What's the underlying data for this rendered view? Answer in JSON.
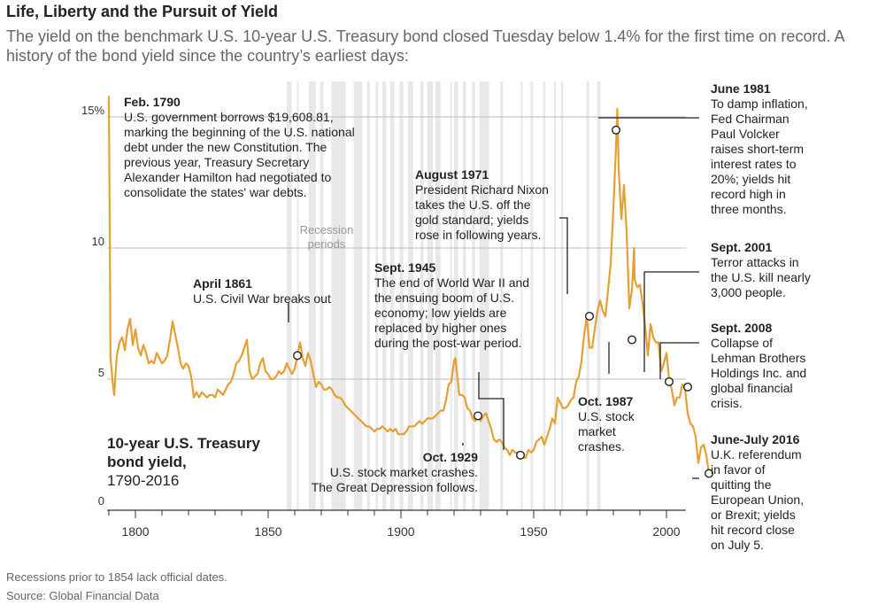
{
  "header": {
    "title": "Life, Liberty and the Pursuit of Yield",
    "subtitle": "The yield on the benchmark U.S. 10-year U.S. Treasury bond closed Tuesday below 1.4% for the first time on record. A history of the bond yield since the country’s earliest days:"
  },
  "footer": {
    "note": "Recessions prior to 1854 lack official dates.",
    "source": "Source: Global Financial Data"
  },
  "colors": {
    "line": "#E5A033",
    "recession": "#D9D9D9",
    "grid": "#BBBBBB",
    "text": "#222222",
    "muted": "#666666"
  },
  "chart_data": {
    "type": "line",
    "series_label": [
      "10-year U.S. Treasury",
      "bond yield,",
      "1790-2016"
    ],
    "xlim": [
      1790,
      2016
    ],
    "ylim": [
      0,
      15
    ],
    "x_ticks": [
      1800,
      1850,
      1900,
      1950,
      2000
    ],
    "y_ticks": [
      {
        "value": 0,
        "label": "0"
      },
      {
        "value": 5,
        "label": "5"
      },
      {
        "value": 10,
        "label": "10"
      },
      {
        "value": 15,
        "label": "15%"
      }
    ],
    "recession_label": [
      "Recession",
      "periods"
    ],
    "recession_periods": [
      [
        1857,
        1858.9
      ],
      [
        1860.8,
        1861.5
      ],
      [
        1865.3,
        1867.9
      ],
      [
        1869.5,
        1870.9
      ],
      [
        1873.8,
        1879.2
      ],
      [
        1882.2,
        1885.4
      ],
      [
        1887.2,
        1888.3
      ],
      [
        1890.5,
        1891.4
      ],
      [
        1893,
        1894.5
      ],
      [
        1895.9,
        1897.5
      ],
      [
        1899.5,
        1900.9
      ],
      [
        1902.7,
        1904.6
      ],
      [
        1907.3,
        1908.5
      ],
      [
        1910,
        1912
      ],
      [
        1913,
        1914.9
      ],
      [
        1918.6,
        1919.2
      ],
      [
        1920,
        1921.5
      ],
      [
        1923.3,
        1924.5
      ],
      [
        1926.8,
        1927.9
      ],
      [
        1929.6,
        1933.2
      ],
      [
        1937.4,
        1938.5
      ],
      [
        1945.1,
        1945.8
      ],
      [
        1948.8,
        1949.8
      ],
      [
        1953.5,
        1954.4
      ],
      [
        1957.6,
        1958.3
      ],
      [
        1960.3,
        1961.1
      ],
      [
        1969.9,
        1970.9
      ],
      [
        1973.8,
        1975.2
      ]
    ],
    "values": [
      [
        1790,
        15.8
      ],
      [
        1790.3,
        11.2
      ],
      [
        1790.6,
        5.8
      ],
      [
        1791,
        5.4
      ],
      [
        1791.5,
        4.8
      ],
      [
        1792,
        4.4
      ],
      [
        1793,
        5.9
      ],
      [
        1794,
        6.4
      ],
      [
        1795,
        6.6
      ],
      [
        1796,
        6.1
      ],
      [
        1797,
        6.9
      ],
      [
        1798,
        7.3
      ],
      [
        1799,
        6.3
      ],
      [
        1800,
        6.9
      ],
      [
        1801,
        6.2
      ],
      [
        1802,
        5.9
      ],
      [
        1803,
        6.3
      ],
      [
        1804,
        6.0
      ],
      [
        1805,
        5.6
      ],
      [
        1806,
        5.7
      ],
      [
        1807,
        5.6
      ],
      [
        1808,
        6.0
      ],
      [
        1809,
        5.8
      ],
      [
        1810,
        5.6
      ],
      [
        1811,
        5.7
      ],
      [
        1812,
        5.9
      ],
      [
        1813,
        6.5
      ],
      [
        1814,
        7.2
      ],
      [
        1815,
        6.7
      ],
      [
        1816,
        6.2
      ],
      [
        1817,
        5.6
      ],
      [
        1818,
        5.4
      ],
      [
        1819,
        5.6
      ],
      [
        1820,
        5.5
      ],
      [
        1821,
        5.1
      ],
      [
        1822,
        4.3
      ],
      [
        1823,
        4.5
      ],
      [
        1824,
        4.3
      ],
      [
        1825,
        4.5
      ],
      [
        1826,
        4.4
      ],
      [
        1827,
        4.3
      ],
      [
        1828,
        4.4
      ],
      [
        1829,
        4.4
      ],
      [
        1830,
        4.3
      ],
      [
        1831,
        4.6
      ],
      [
        1832,
        4.5
      ],
      [
        1833,
        4.4
      ],
      [
        1834,
        4.6
      ],
      [
        1835,
        4.8
      ],
      [
        1836,
        4.9
      ],
      [
        1837,
        5.2
      ],
      [
        1838,
        5.6
      ],
      [
        1839,
        5.7
      ],
      [
        1840,
        5.9
      ],
      [
        1841,
        6.2
      ],
      [
        1842,
        6.5
      ],
      [
        1843,
        5.3
      ],
      [
        1844,
        5.0
      ],
      [
        1845,
        5.1
      ],
      [
        1846,
        5.2
      ],
      [
        1847,
        5.6
      ],
      [
        1848,
        5.8
      ],
      [
        1849,
        5.3
      ],
      [
        1850,
        5.2
      ],
      [
        1851,
        5.0
      ],
      [
        1852,
        5.0
      ],
      [
        1853,
        5.1
      ],
      [
        1854,
        5.3
      ],
      [
        1855,
        5.2
      ],
      [
        1856,
        5.3
      ],
      [
        1857,
        5.6
      ],
      [
        1858,
        5.4
      ],
      [
        1859,
        5.2
      ],
      [
        1860,
        5.4
      ],
      [
        1861,
        5.9
      ],
      [
        1862,
        6.4
      ],
      [
        1863,
        5.8
      ],
      [
        1864,
        5.5
      ],
      [
        1865,
        6.0
      ],
      [
        1866,
        5.7
      ],
      [
        1867,
        5.2
      ],
      [
        1868,
        4.7
      ],
      [
        1869,
        4.9
      ],
      [
        1870,
        4.8
      ],
      [
        1871,
        4.6
      ],
      [
        1872,
        4.6
      ],
      [
        1873,
        4.7
      ],
      [
        1874,
        4.6
      ],
      [
        1875,
        4.4
      ],
      [
        1876,
        4.3
      ],
      [
        1877,
        4.3
      ],
      [
        1878,
        4.2
      ],
      [
        1879,
        4.0
      ],
      [
        1880,
        3.9
      ],
      [
        1881,
        3.8
      ],
      [
        1882,
        3.7
      ],
      [
        1883,
        3.6
      ],
      [
        1884,
        3.5
      ],
      [
        1885,
        3.4
      ],
      [
        1886,
        3.3
      ],
      [
        1887,
        3.2
      ],
      [
        1888,
        3.2
      ],
      [
        1889,
        3.1
      ],
      [
        1890,
        3.0
      ],
      [
        1891,
        3.1
      ],
      [
        1892,
        3.1
      ],
      [
        1893,
        3.2
      ],
      [
        1894,
        3.1
      ],
      [
        1895,
        3.0
      ],
      [
        1896,
        3.1
      ],
      [
        1897,
        3.0
      ],
      [
        1898,
        3.1
      ],
      [
        1899,
        2.9
      ],
      [
        1900,
        2.9
      ],
      [
        1901,
        2.9
      ],
      [
        1902,
        3.0
      ],
      [
        1903,
        3.2
      ],
      [
        1904,
        3.2
      ],
      [
        1905,
        3.2
      ],
      [
        1906,
        3.3
      ],
      [
        1907,
        3.4
      ],
      [
        1908,
        3.3
      ],
      [
        1909,
        3.4
      ],
      [
        1910,
        3.5
      ],
      [
        1911,
        3.5
      ],
      [
        1912,
        3.5
      ],
      [
        1913,
        3.6
      ],
      [
        1914,
        3.7
      ],
      [
        1915,
        3.8
      ],
      [
        1916,
        3.8
      ],
      [
        1917,
        4.2
      ],
      [
        1918,
        4.8
      ],
      [
        1919,
        4.9
      ],
      [
        1920,
        5.7
      ],
      [
        1920.5,
        5.8
      ],
      [
        1921,
        5.3
      ],
      [
        1922,
        4.4
      ],
      [
        1923,
        4.4
      ],
      [
        1924,
        4.3
      ],
      [
        1925,
        3.9
      ],
      [
        1926,
        3.8
      ],
      [
        1927,
        3.5
      ],
      [
        1928,
        3.4
      ],
      [
        1929,
        3.6
      ],
      [
        1930,
        3.4
      ],
      [
        1931,
        3.6
      ],
      [
        1932,
        3.7
      ],
      [
        1933,
        3.4
      ],
      [
        1934,
        3.1
      ],
      [
        1935,
        2.7
      ],
      [
        1936,
        2.6
      ],
      [
        1937,
        2.7
      ],
      [
        1938,
        2.6
      ],
      [
        1939,
        2.4
      ],
      [
        1940,
        2.3
      ],
      [
        1941,
        2.1
      ],
      [
        1942,
        2.3
      ],
      [
        1943,
        2.2
      ],
      [
        1944,
        2.2
      ],
      [
        1945,
        2.1
      ],
      [
        1946,
        2.0
      ],
      [
        1947,
        2.0
      ],
      [
        1948,
        2.3
      ],
      [
        1949,
        2.2
      ],
      [
        1950,
        2.3
      ],
      [
        1951,
        2.6
      ],
      [
        1952,
        2.7
      ],
      [
        1953,
        2.8
      ],
      [
        1954,
        2.5
      ],
      [
        1955,
        2.8
      ],
      [
        1956,
        3.1
      ],
      [
        1957,
        3.5
      ],
      [
        1958,
        3.3
      ],
      [
        1959,
        4.3
      ],
      [
        1960,
        4.1
      ],
      [
        1961,
        3.9
      ],
      [
        1962,
        3.9
      ],
      [
        1963,
        4.0
      ],
      [
        1964,
        4.2
      ],
      [
        1965,
        4.3
      ],
      [
        1966,
        4.9
      ],
      [
        1967,
        5.1
      ],
      [
        1968,
        5.7
      ],
      [
        1969,
        6.7
      ],
      [
        1970,
        7.4
      ],
      [
        1971,
        6.2
      ],
      [
        1972,
        6.2
      ],
      [
        1973,
        6.9
      ],
      [
        1974,
        7.6
      ],
      [
        1975,
        8.0
      ],
      [
        1976,
        7.6
      ],
      [
        1977,
        7.4
      ],
      [
        1978,
        8.4
      ],
      [
        1979,
        9.4
      ],
      [
        1980,
        11.5
      ],
      [
        1981,
        13.9
      ],
      [
        1981.5,
        15.3
      ],
      [
        1982,
        13.0
      ],
      [
        1983,
        11.1
      ],
      [
        1984,
        12.4
      ],
      [
        1985,
        10.6
      ],
      [
        1986,
        7.7
      ],
      [
        1987,
        8.4
      ],
      [
        1987.8,
        10.0
      ],
      [
        1988,
        8.8
      ],
      [
        1989,
        8.5
      ],
      [
        1990,
        8.6
      ],
      [
        1991,
        7.9
      ],
      [
        1992,
        7.0
      ],
      [
        1993,
        5.9
      ],
      [
        1994,
        7.1
      ],
      [
        1995,
        6.6
      ],
      [
        1996,
        6.4
      ],
      [
        1997,
        6.4
      ],
      [
        1998,
        5.3
      ],
      [
        1999,
        5.6
      ],
      [
        2000,
        6.0
      ],
      [
        2001,
        5.0
      ],
      [
        2002,
        4.6
      ],
      [
        2003,
        4.0
      ],
      [
        2004,
        4.3
      ],
      [
        2005,
        4.3
      ],
      [
        2006,
        4.8
      ],
      [
        2007,
        4.6
      ],
      [
        2008,
        3.7
      ],
      [
        2009,
        3.3
      ],
      [
        2010,
        3.2
      ],
      [
        2011,
        2.8
      ],
      [
        2012,
        1.8
      ],
      [
        2013,
        2.4
      ],
      [
        2014,
        2.5
      ],
      [
        2015,
        2.1
      ],
      [
        2016,
        1.4
      ]
    ],
    "annotations": [
      {
        "year": 1790,
        "value": 15.5,
        "title": "Feb. 1790",
        "text": [
          "U.S. government borrows $19,608.81,",
          "marking the beginning of the U.S. national",
          "debt under the new Constitution. The",
          "previous year, Treasury Secretary",
          "Alexander Hamilton had negotiated to",
          "consolidate the states' war debts."
        ]
      },
      {
        "year": 1861,
        "value": 5.9,
        "title": "April 1861",
        "text": [
          "U.S. Civil War breaks out"
        ]
      },
      {
        "year": 1929,
        "value": 3.6,
        "title": "Oct. 1929",
        "text": [
          "U.S. stock market crashes.",
          "The Great Depression follows."
        ]
      },
      {
        "year": 1945,
        "value": 2.1,
        "title": "Sept. 1945",
        "text": [
          "The end of World War II and",
          "the ensuing boom of U.S.",
          "economy; low yields are",
          "replaced by higher ones",
          "during the post-war period."
        ]
      },
      {
        "year": 1971,
        "value": 7.4,
        "title": "August 1971",
        "text": [
          "President Richard Nixon",
          "takes the U.S. off the",
          "gold standard; yields",
          "rose in following years."
        ]
      },
      {
        "year": 1981,
        "value": 14.5,
        "title": "June 1981",
        "text": [
          "To damp inflation,",
          "Fed Chairman",
          "Paul Volcker",
          "raises short-term",
          "interest rates to",
          "20%; yields hit",
          "record high in",
          "three months."
        ]
      },
      {
        "year": 1987,
        "value": 6.5,
        "title": "Oct. 1987",
        "text": [
          "U.S. stock",
          "market",
          "crashes."
        ]
      },
      {
        "year": 2001,
        "value": 4.9,
        "title": "Sept. 2001",
        "text": [
          "Terror attacks in",
          "the U.S. kill nearly",
          "3,000 people."
        ]
      },
      {
        "year": 2008,
        "value": 4.7,
        "title": "Sept. 2008",
        "text": [
          "Collapse of",
          "Lehman Brothers",
          "Holdings Inc. and",
          "global financial",
          "crisis."
        ]
      },
      {
        "year": 2016,
        "value": 1.4,
        "title": "June-July 2016",
        "text": [
          "U.K. referendum",
          "in favor of",
          "quitting the",
          "European Union,",
          "or Brexit; yields",
          "hit record close",
          "on July 5."
        ]
      }
    ]
  }
}
